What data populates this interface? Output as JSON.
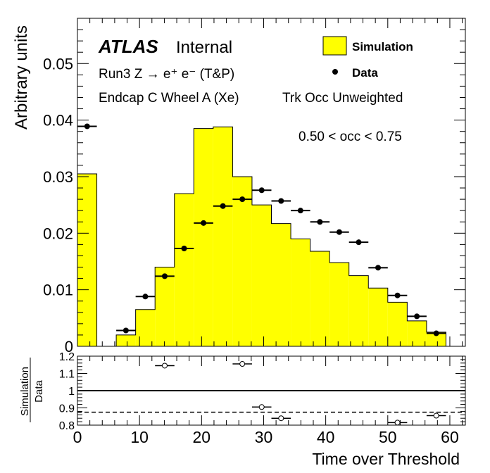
{
  "chart_data": {
    "type": "bar",
    "main": {
      "ylabel": "Arbitrary units",
      "ylim": [
        0,
        0.058
      ],
      "yticks": [
        {
          "v": 0,
          "label": "0"
        },
        {
          "v": 0.01,
          "label": "0.01"
        },
        {
          "v": 0.02,
          "label": "0.02"
        },
        {
          "v": 0.03,
          "label": "0.03"
        },
        {
          "v": 0.04,
          "label": "0.04"
        },
        {
          "v": 0.05,
          "label": "0.05"
        }
      ],
      "bin_width": 3.125,
      "simulation": [
        0.0305,
        0.0,
        0.002,
        0.0065,
        0.014,
        0.027,
        0.0385,
        0.0388,
        0.03,
        0.025,
        0.0217,
        0.019,
        0.0168,
        0.0148,
        0.0125,
        0.0103,
        0.0078,
        0.0045,
        0.0025,
        0.0
      ],
      "data_points": [
        {
          "x": 1.5625,
          "y": 0.0389
        },
        {
          "x": 7.8125,
          "y": 0.0028
        },
        {
          "x": 10.9375,
          "y": 0.0088
        },
        {
          "x": 14.0625,
          "y": 0.0124
        },
        {
          "x": 17.1875,
          "y": 0.0173
        },
        {
          "x": 20.3125,
          "y": 0.0218
        },
        {
          "x": 23.4375,
          "y": 0.0248
        },
        {
          "x": 26.5625,
          "y": 0.026
        },
        {
          "x": 29.6875,
          "y": 0.0276
        },
        {
          "x": 32.8125,
          "y": 0.0257
        },
        {
          "x": 35.9375,
          "y": 0.024
        },
        {
          "x": 39.0625,
          "y": 0.022
        },
        {
          "x": 42.1875,
          "y": 0.0202
        },
        {
          "x": 45.3125,
          "y": 0.0184
        },
        {
          "x": 48.4375,
          "y": 0.0139
        },
        {
          "x": 51.5625,
          "y": 0.009
        },
        {
          "x": 54.6875,
          "y": 0.0053
        },
        {
          "x": 57.8125,
          "y": 0.0023
        }
      ],
      "legend": {
        "simulation": "Simulation",
        "data": "Data"
      },
      "labels": {
        "atlas": "ATLAS",
        "internal": "Internal",
        "run_line": "Run3 Z → e⁺ e⁻ (T&P)",
        "region": "Endcap C Wheel A (Xe)",
        "weighting": "Trk Occ Unweighted",
        "occ_range": "0.50 < occ < 0.75"
      }
    },
    "ratio": {
      "ylabel_top": "Simulation",
      "ylabel_bottom": "Data",
      "ylim": [
        0.8,
        1.2
      ],
      "yticks": [
        {
          "v": 0.8,
          "label": "0.8"
        },
        {
          "v": 0.9,
          "label": "0.9"
        },
        {
          "v": 1.0,
          "label": "1"
        },
        {
          "v": 1.1,
          "label": "1.1"
        },
        {
          "v": 1.2,
          "label": "1.2"
        }
      ],
      "reference_line": 1.0,
      "mean_line": 0.875,
      "points": [
        {
          "x": 14.0625,
          "y": 1.145
        },
        {
          "x": 26.5625,
          "y": 1.155
        },
        {
          "x": 29.6875,
          "y": 0.905
        },
        {
          "x": 32.8125,
          "y": 0.84
        },
        {
          "x": 51.5625,
          "y": 0.815
        },
        {
          "x": 57.8125,
          "y": 0.855
        }
      ]
    },
    "xlabel": "Time over Threshold",
    "xlim": [
      0,
      62.5
    ],
    "xticks": [
      {
        "v": 0,
        "label": "0"
      },
      {
        "v": 10,
        "label": "10"
      },
      {
        "v": 20,
        "label": "20"
      },
      {
        "v": 30,
        "label": "30"
      },
      {
        "v": 40,
        "label": "40"
      },
      {
        "v": 50,
        "label": "50"
      },
      {
        "v": 60,
        "label": "60"
      }
    ],
    "colors": {
      "simulation_fill": "#ffff00",
      "line": "#000000"
    }
  }
}
